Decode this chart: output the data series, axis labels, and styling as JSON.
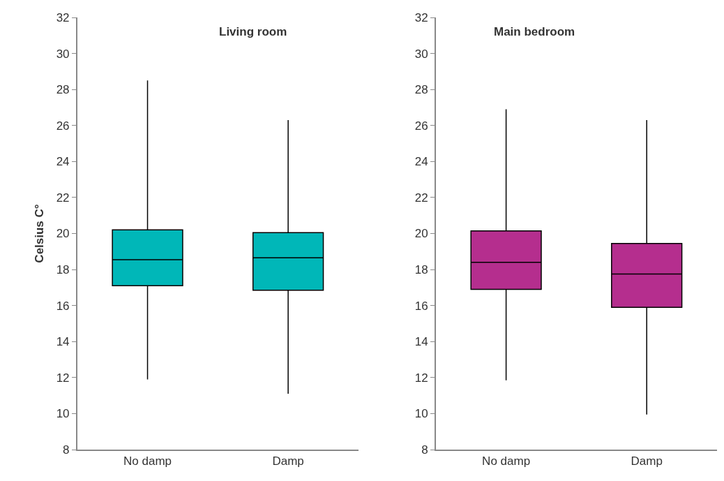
{
  "chart_data": [
    {
      "type": "box",
      "title": "Living room",
      "ylabel": "Celsius C°",
      "categories": [
        "No damp",
        "Damp"
      ],
      "color": "#00b7b8",
      "boxes": [
        {
          "low": 11.9,
          "q1": 17.1,
          "median": 18.55,
          "q3": 20.2,
          "high": 28.5
        },
        {
          "low": 11.1,
          "q1": 16.85,
          "median": 18.65,
          "q3": 20.05,
          "high": 26.3
        }
      ],
      "ylim": [
        8,
        32
      ],
      "yticks": [
        8,
        10,
        12,
        14,
        16,
        18,
        20,
        22,
        24,
        26,
        28,
        30,
        32
      ],
      "legend": false
    },
    {
      "type": "box",
      "title": "Main bedroom",
      "categories": [
        "No damp",
        "Damp"
      ],
      "color": "#b52e8e",
      "boxes": [
        {
          "low": 11.85,
          "q1": 16.9,
          "median": 18.4,
          "q3": 20.15,
          "high": 26.9
        },
        {
          "low": 9.95,
          "q1": 15.9,
          "median": 17.75,
          "q3": 19.45,
          "high": 26.3
        }
      ],
      "ylim": [
        8,
        32
      ],
      "yticks": [
        8,
        10,
        12,
        14,
        16,
        18,
        20,
        22,
        24,
        26,
        28,
        30,
        32
      ],
      "legend": false
    }
  ]
}
